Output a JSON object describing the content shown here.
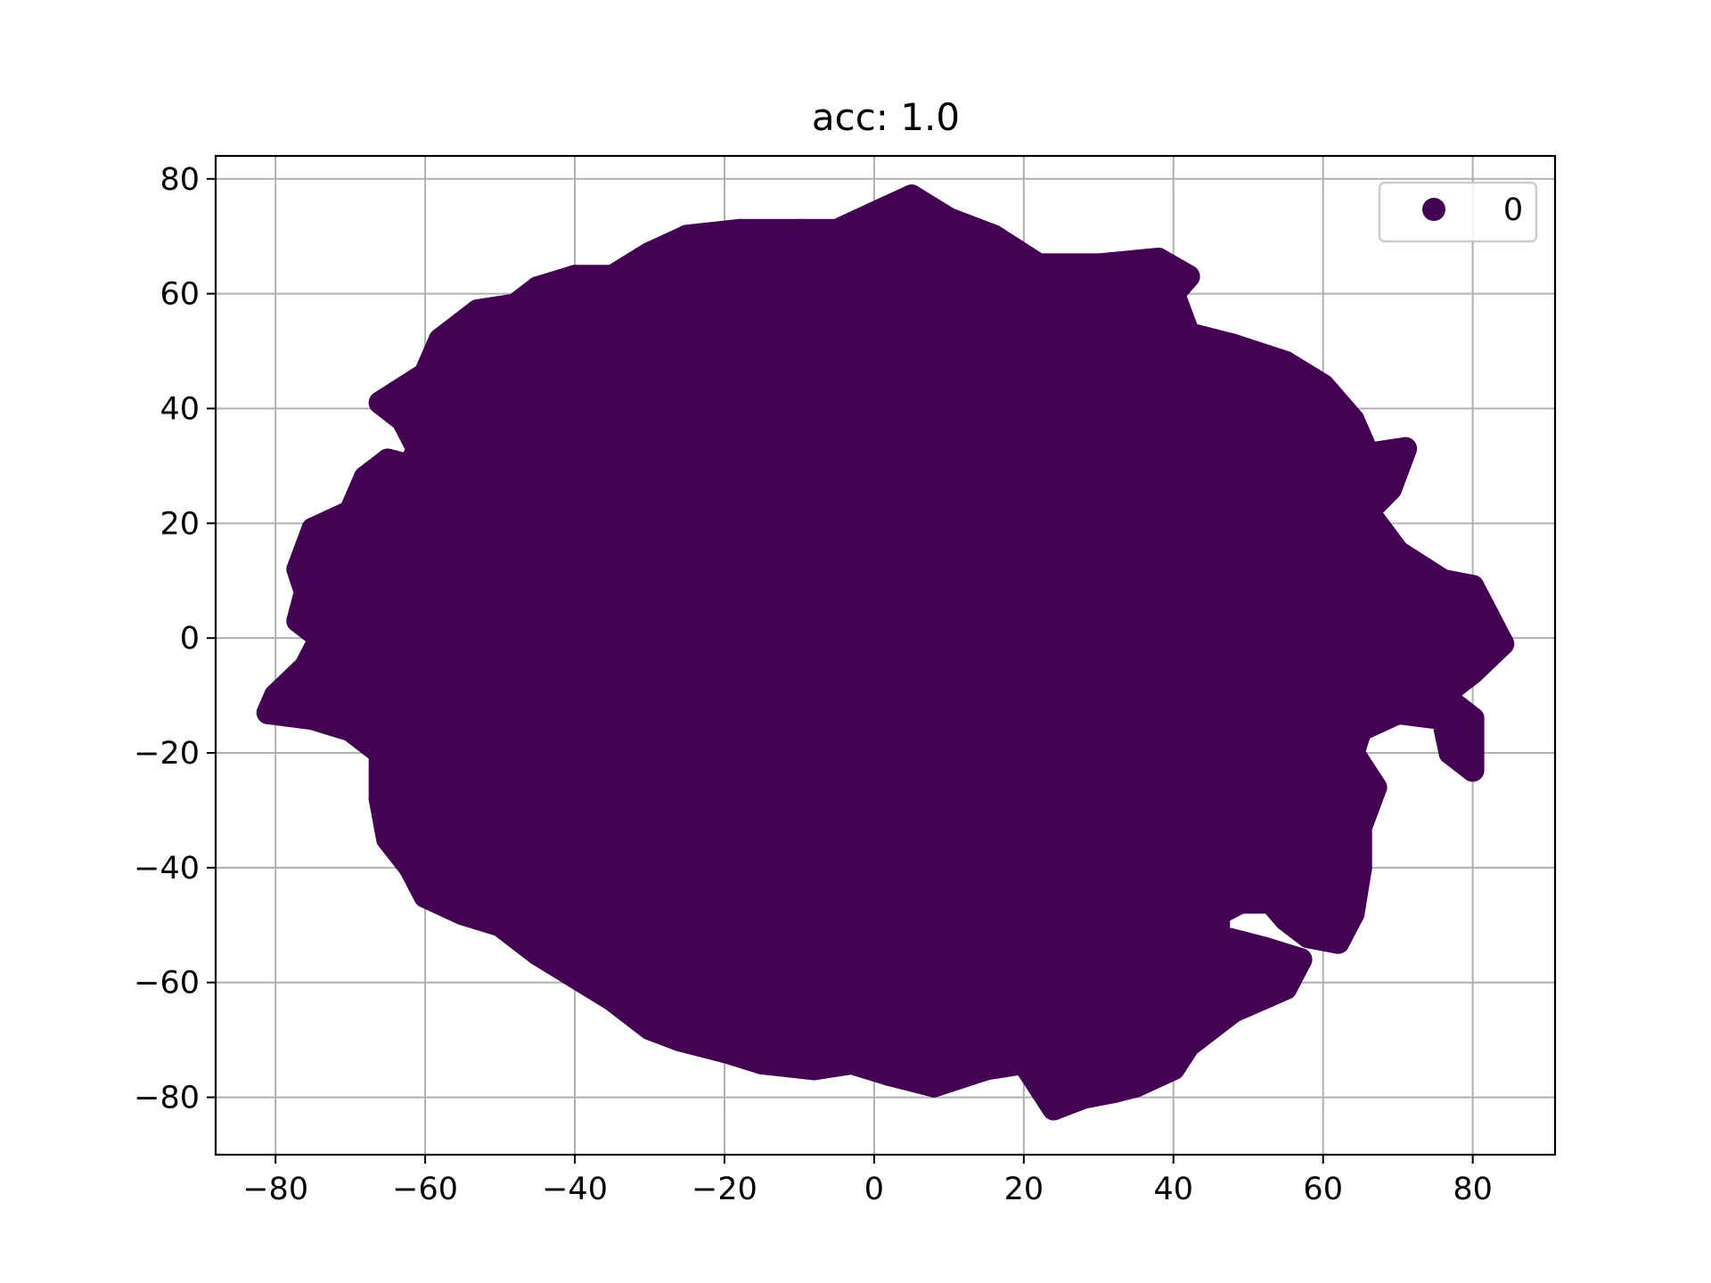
{
  "chart_data": {
    "type": "scatter",
    "title": "acc: 1.0",
    "xlim": [
      -88,
      91
    ],
    "ylim": [
      -90,
      84
    ],
    "x_ticks": [
      -80,
      -60,
      -40,
      -20,
      0,
      20,
      40,
      60,
      80
    ],
    "y_ticks": [
      -80,
      -60,
      -40,
      -20,
      0,
      20,
      40,
      60,
      80
    ],
    "x_tick_labels": [
      "−80",
      "−60",
      "−40",
      "−20",
      "0",
      "20",
      "40",
      "60",
      "80"
    ],
    "y_tick_labels": [
      "−80",
      "−60",
      "−40",
      "−20",
      "0",
      "20",
      "40",
      "60",
      "80"
    ],
    "grid": true,
    "legend": {
      "position": "top-right",
      "entries": [
        "0"
      ]
    },
    "series": [
      {
        "name": "0",
        "color": "#440154",
        "outline": [
          [
            5,
            77
          ],
          [
            10,
            73
          ],
          [
            16,
            70
          ],
          [
            22,
            65
          ],
          [
            30,
            65
          ],
          [
            38,
            66
          ],
          [
            42,
            63
          ],
          [
            40,
            60
          ],
          [
            42,
            53
          ],
          [
            48,
            51
          ],
          [
            55,
            48
          ],
          [
            60,
            44
          ],
          [
            64,
            38
          ],
          [
            66,
            32
          ],
          [
            71,
            33
          ],
          [
            69,
            26
          ],
          [
            66,
            22
          ],
          [
            70,
            15
          ],
          [
            76,
            10
          ],
          [
            80,
            9
          ],
          [
            82,
            4
          ],
          [
            84,
            -1
          ],
          [
            80,
            -6
          ],
          [
            76,
            -10
          ],
          [
            80,
            -14
          ],
          [
            80,
            -23
          ],
          [
            77,
            -20
          ],
          [
            76,
            -14
          ],
          [
            70,
            -13
          ],
          [
            65,
            -16
          ],
          [
            64,
            -20
          ],
          [
            66,
            -24
          ],
          [
            67,
            -26
          ],
          [
            65,
            -33
          ],
          [
            65,
            -40
          ],
          [
            64,
            -48
          ],
          [
            62,
            -53
          ],
          [
            58,
            -52
          ],
          [
            55,
            -49
          ],
          [
            53,
            -46
          ],
          [
            49,
            -46
          ],
          [
            46,
            -48
          ],
          [
            46,
            -52
          ],
          [
            52,
            -54
          ],
          [
            57,
            -56
          ],
          [
            55,
            -61
          ],
          [
            48,
            -65
          ],
          [
            42,
            -71
          ],
          [
            40,
            -75
          ],
          [
            35,
            -78
          ],
          [
            32,
            -79
          ],
          [
            28,
            -80
          ],
          [
            24,
            -82
          ],
          [
            22,
            -78
          ],
          [
            20,
            -74
          ],
          [
            15,
            -75
          ],
          [
            8,
            -78
          ],
          [
            2,
            -76
          ],
          [
            -3,
            -74
          ],
          [
            -8,
            -75
          ],
          [
            -15,
            -74
          ],
          [
            -20,
            -72
          ],
          [
            -26,
            -70
          ],
          [
            -30,
            -68
          ],
          [
            -35,
            -63
          ],
          [
            -40,
            -59
          ],
          [
            -45,
            -55
          ],
          [
            -50,
            -50
          ],
          [
            -55,
            -48
          ],
          [
            -60,
            -45
          ],
          [
            -62,
            -40
          ],
          [
            -65,
            -35
          ],
          [
            -66,
            -28
          ],
          [
            -66,
            -20
          ],
          [
            -70,
            -16
          ],
          [
            -75,
            -14
          ],
          [
            -81,
            -13
          ],
          [
            -80,
            -10
          ],
          [
            -76,
            -5
          ],
          [
            -74,
            0
          ],
          [
            -77,
            3
          ],
          [
            -76,
            8
          ],
          [
            -77,
            12
          ],
          [
            -75,
            19
          ],
          [
            -70,
            22
          ],
          [
            -68,
            28
          ],
          [
            -65,
            31
          ],
          [
            -62,
            30
          ],
          [
            -61,
            33
          ],
          [
            -63,
            38
          ],
          [
            -66,
            41
          ],
          [
            -60,
            46
          ],
          [
            -58,
            52
          ],
          [
            -53,
            57
          ],
          [
            -48,
            58
          ],
          [
            -45,
            61
          ],
          [
            -40,
            63
          ],
          [
            -35,
            63
          ],
          [
            -30,
            67
          ],
          [
            -25,
            70
          ],
          [
            -18,
            71
          ],
          [
            -10,
            71
          ],
          [
            -5,
            71
          ],
          [
            0,
            74
          ]
        ]
      }
    ]
  }
}
